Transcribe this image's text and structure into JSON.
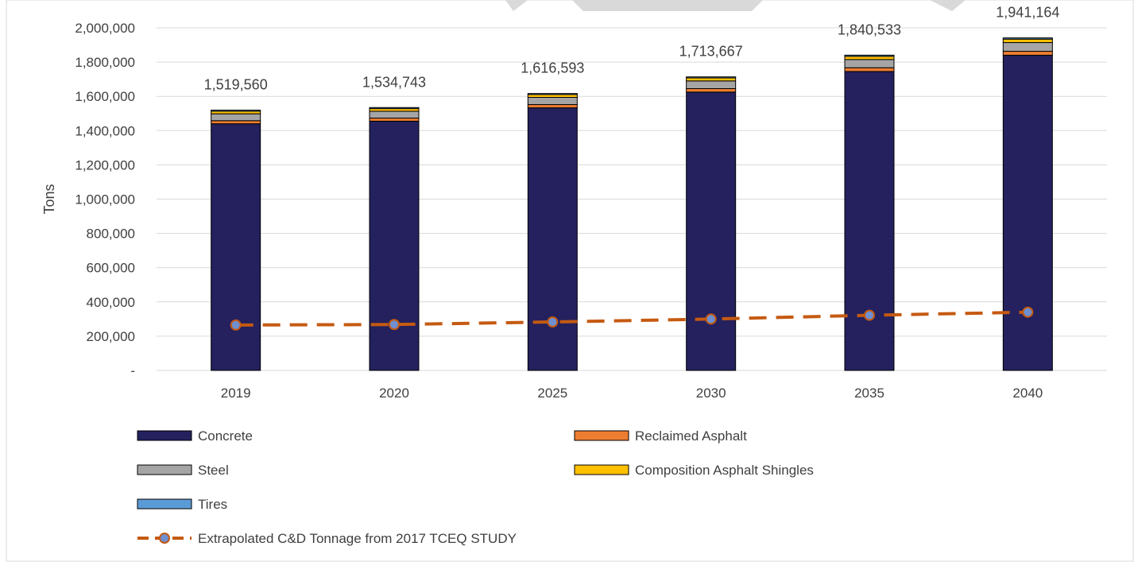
{
  "chart_data": {
    "type": "bar",
    "stacked": true,
    "title": "",
    "xlabel": "",
    "ylabel": "Tons",
    "ylim": [
      0,
      2000000
    ],
    "y_ticks": [
      "-",
      "200,000",
      "400,000",
      "600,000",
      "800,000",
      "1,000,000",
      "1,200,000",
      "1,400,000",
      "1,600,000",
      "1,800,000",
      "2,000,000"
    ],
    "grid": true,
    "legend_position": "bottom",
    "categories": [
      "2019",
      "2020",
      "2025",
      "2030",
      "2035",
      "2040"
    ],
    "totals": [
      "1,519,560",
      "1,534,743",
      "1,616,593",
      "1,713,667",
      "1,840,533",
      "1,941,164"
    ],
    "series": [
      {
        "name": "Concrete",
        "color": "#24215e",
        "values": [
          1440000,
          1455000,
          1533000,
          1625000,
          1745000,
          1840000
        ]
      },
      {
        "name": "Reclaimed Asphalt",
        "color": "#ed7d31",
        "values": [
          18000,
          18000,
          19000,
          20000,
          22000,
          23000
        ]
      },
      {
        "name": "Steel",
        "color": "#a5a5a5",
        "values": [
          40000,
          40000,
          42000,
          45000,
          48000,
          51000
        ]
      },
      {
        "name": "Composition Asphalt Shingles",
        "color": "#ffc000",
        "values": [
          15000,
          15500,
          16500,
          17500,
          18500,
          20000
        ]
      },
      {
        "name": "Tires",
        "color": "#5b9bd5",
        "values": [
          6560,
          6243,
          6093,
          6167,
          7033,
          7164
        ]
      }
    ],
    "line_series": {
      "name": "Extrapolated C&D Tonnage from 2017 TCEQ STUDY",
      "color": "#c55a11",
      "marker_color": "#6f8fd1",
      "values": [
        265000,
        268000,
        283000,
        300000,
        322000,
        340000
      ]
    }
  }
}
